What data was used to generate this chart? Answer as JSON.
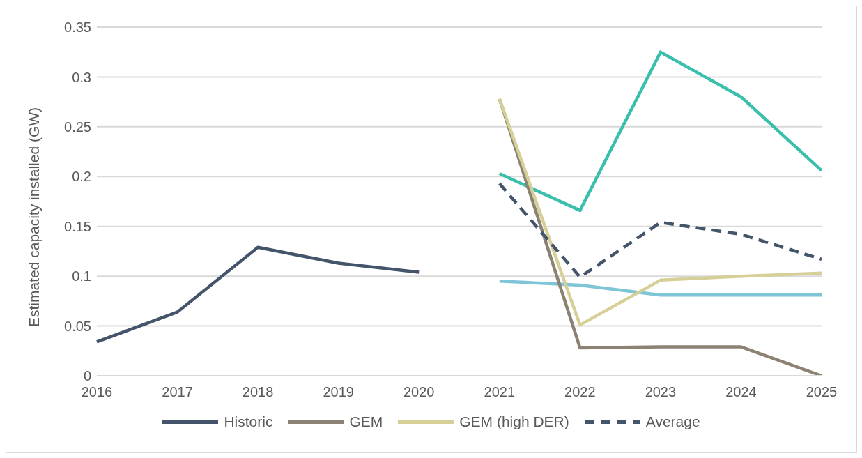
{
  "chart_data": {
    "type": "line",
    "ylabel": "Estimated capacity installed (GW)",
    "categories": [
      "2016",
      "2017",
      "2018",
      "2019",
      "2020",
      "2021",
      "2022",
      "2023",
      "2024",
      "2025"
    ],
    "series": [
      {
        "name": "Historic",
        "color": "#44546a",
        "values": [
          0.034,
          0.064,
          0.129,
          0.113,
          0.104,
          null,
          null,
          null,
          null,
          null
        ]
      },
      {
        "color": "#7ec5d8",
        "values": [
          null,
          null,
          null,
          null,
          null,
          0.095,
          0.091,
          0.081,
          0.081,
          0.081
        ]
      },
      {
        "color": "#3bbfad",
        "values": [
          null,
          null,
          null,
          null,
          null,
          0.203,
          0.166,
          0.325,
          0.28,
          0.206
        ]
      },
      {
        "name": "GEM",
        "color": "#8c8273",
        "values": [
          null,
          null,
          null,
          null,
          null,
          0.278,
          0.028,
          0.029,
          0.029,
          0
        ]
      },
      {
        "name": "GEM (high DER)",
        "color": "#d6cf98",
        "values": [
          null,
          null,
          null,
          null,
          null,
          0.278,
          0.051,
          0.096,
          0.1,
          0.103
        ]
      },
      {
        "name": "Average",
        "color": "#44546a",
        "line_style": "dashed",
        "values": [
          null,
          null,
          null,
          null,
          null,
          0.193,
          0.099,
          0.154,
          0.142,
          0.117
        ]
      }
    ],
    "ylim": [
      0,
      0.35
    ],
    "yticks": [
      0,
      0.05,
      0.1,
      0.15,
      0.2,
      0.25,
      0.3,
      0.35
    ],
    "grid": "y",
    "legend": "bottom",
    "marker": "none"
  }
}
